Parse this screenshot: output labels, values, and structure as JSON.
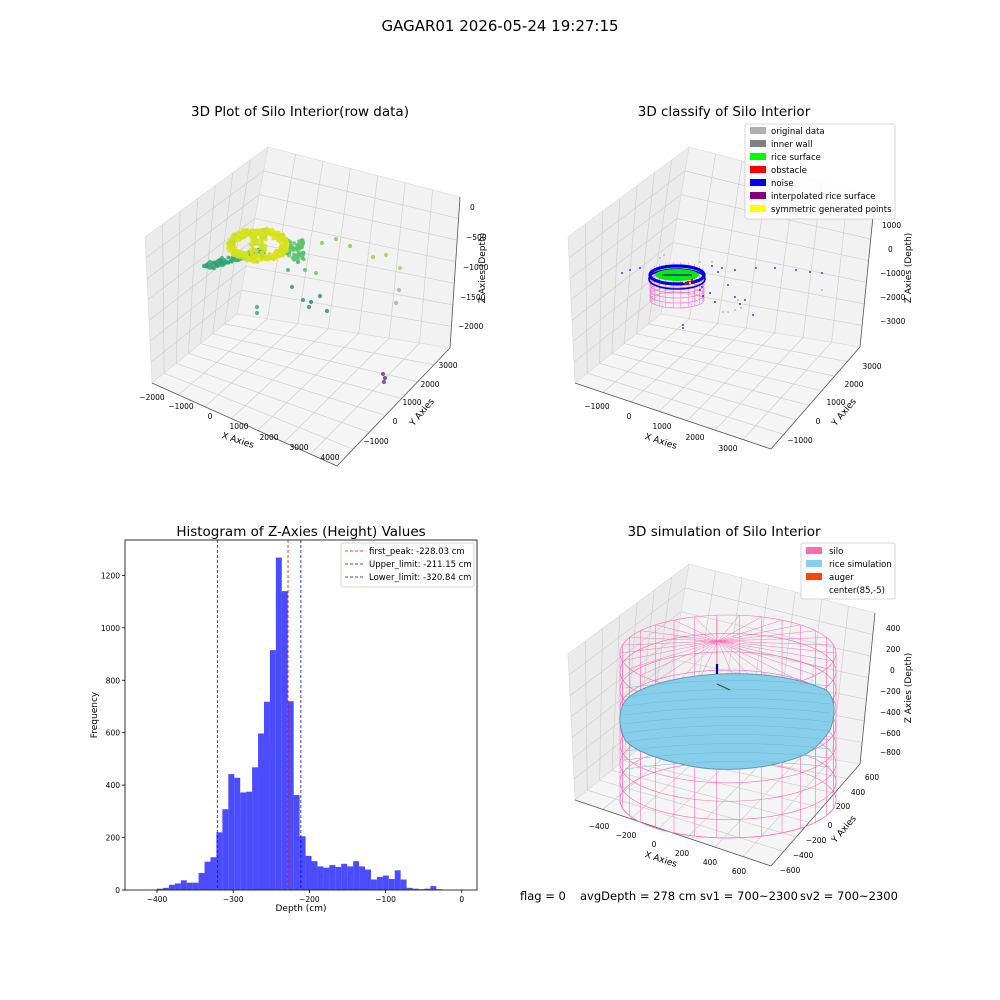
{
  "figure": {
    "suptitle": "GAGAR01 2026-05-24 19:27:15",
    "status": {
      "flag": "flag = 0",
      "avg_depth": "avgDepth = 278 cm",
      "sv1": "sv1 = 700~2300",
      "sv2": "sv2 = 700~2300"
    }
  },
  "chart_data": [
    {
      "type": "scatter",
      "projection": "3d",
      "title": "3D Plot of Silo Interior(row data)",
      "xlabel": "X Axies",
      "ylabel": "Y Axies",
      "zlabel": "Z Axies (Depth)",
      "x_ticks": [
        "−2000",
        "−1000",
        "0",
        "1000",
        "2000",
        "3000",
        "4000"
      ],
      "y_ticks": [
        "−1000",
        "0",
        "1000",
        "2000",
        "3000"
      ],
      "z_ticks": [
        "0",
        "−500",
        "−1000",
        "−1500",
        "−2000"
      ],
      "colormap": "viridis",
      "grid": true,
      "points_description": "dense ring of yellow-green points near z≈-300 with scattered teal/green outliers and a small purple cluster"
    },
    {
      "type": "scatter",
      "projection": "3d",
      "title": "3D classify of Silo Interior",
      "xlabel": "X Axies",
      "ylabel": "Y Axies",
      "zlabel": "Z Axies (Depth)",
      "x_ticks": [
        "−1000",
        "0",
        "1000",
        "2000",
        "3000"
      ],
      "y_ticks": [
        "−1000",
        "0",
        "1000",
        "2000",
        "3000"
      ],
      "z_ticks": [
        "1000",
        "0",
        "−1000",
        "−2000",
        "−3000"
      ],
      "grid": true,
      "legend_position": "top-right",
      "legend": [
        {
          "label": "original data",
          "color": "#b0b0b0"
        },
        {
          "label": "inner wall",
          "color": "#808080"
        },
        {
          "label": "rice surface",
          "color": "#00ff00"
        },
        {
          "label": "obstacle",
          "color": "#ff0000"
        },
        {
          "label": "noise",
          "color": "#0000ff"
        },
        {
          "label": "interpolated rice surface",
          "color": "#800080"
        },
        {
          "label": "symmetric generated points",
          "color": "#ffff00"
        }
      ]
    },
    {
      "type": "bar",
      "subtype": "histogram",
      "title": "Histogram of Z-Axies (Height) Values",
      "xlabel": "Depth (cm)",
      "ylabel": "Frequency",
      "xlim": [
        -442,
        20
      ],
      "ylim": [
        0,
        1335
      ],
      "x_ticks": [
        -400,
        -300,
        -200,
        -100,
        0
      ],
      "y_ticks": [
        0,
        200,
        400,
        600,
        800,
        1000,
        1200
      ],
      "bar_color": "#0000ff",
      "bin_width": 7.8,
      "bins": [
        {
          "x": -400.0,
          "count": 5
        },
        {
          "x": -392.2,
          "count": 8
        },
        {
          "x": -384.4,
          "count": 20
        },
        {
          "x": -376.6,
          "count": 25
        },
        {
          "x": -368.8,
          "count": 37
        },
        {
          "x": -361.0,
          "count": 28
        },
        {
          "x": -353.2,
          "count": 28
        },
        {
          "x": -345.4,
          "count": 65
        },
        {
          "x": -337.6,
          "count": 108
        },
        {
          "x": -329.8,
          "count": 125
        },
        {
          "x": -322.0,
          "count": 220
        },
        {
          "x": -314.2,
          "count": 308
        },
        {
          "x": -306.4,
          "count": 442
        },
        {
          "x": -298.6,
          "count": 428
        },
        {
          "x": -290.8,
          "count": 372
        },
        {
          "x": -283.0,
          "count": 375
        },
        {
          "x": -275.2,
          "count": 468
        },
        {
          "x": -267.4,
          "count": 597
        },
        {
          "x": -259.6,
          "count": 718
        },
        {
          "x": -251.8,
          "count": 915
        },
        {
          "x": -244.0,
          "count": 1268
        },
        {
          "x": -236.2,
          "count": 1140
        },
        {
          "x": -228.4,
          "count": 720
        },
        {
          "x": -220.6,
          "count": 362
        },
        {
          "x": -212.8,
          "count": 205
        },
        {
          "x": -205.0,
          "count": 130
        },
        {
          "x": -197.2,
          "count": 110
        },
        {
          "x": -189.4,
          "count": 90
        },
        {
          "x": -181.6,
          "count": 85
        },
        {
          "x": -173.8,
          "count": 95
        },
        {
          "x": -166.0,
          "count": 88
        },
        {
          "x": -158.2,
          "count": 100
        },
        {
          "x": -150.4,
          "count": 90
        },
        {
          "x": -142.6,
          "count": 110
        },
        {
          "x": -134.8,
          "count": 90
        },
        {
          "x": -127.0,
          "count": 78
        },
        {
          "x": -119.2,
          "count": 40
        },
        {
          "x": -111.4,
          "count": 50
        },
        {
          "x": -103.6,
          "count": 55
        },
        {
          "x": -95.8,
          "count": 42
        },
        {
          "x": -88.0,
          "count": 75
        },
        {
          "x": -80.2,
          "count": 40
        },
        {
          "x": -72.4,
          "count": 8
        },
        {
          "x": -64.6,
          "count": 5
        },
        {
          "x": -56.8,
          "count": 3
        },
        {
          "x": -49.0,
          "count": 5
        },
        {
          "x": -41.2,
          "count": 15
        },
        {
          "x": -33.4,
          "count": 3
        }
      ],
      "vlines": [
        {
          "label": "first_peak: -228.03 cm",
          "x": -228.03,
          "color": "#ff0000"
        },
        {
          "label": "Upper_limit: -211.15 cm",
          "x": -211.15,
          "color": "#0000ff"
        },
        {
          "label": "Lower_limit: -320.84 cm",
          "x": -320.84,
          "color": "#0000ff"
        }
      ],
      "legend_position": "top-right"
    },
    {
      "type": "surface",
      "projection": "3d",
      "title": "3D simulation of Silo Interior",
      "xlabel": "X Axies",
      "ylabel": "Y Axies",
      "zlabel": "Z Axies (Depth)",
      "x_ticks": [
        "−400",
        "−200",
        "0",
        "200",
        "400",
        "600"
      ],
      "y_ticks": [
        "−600",
        "−400",
        "−200",
        "0",
        "200",
        "400",
        "600"
      ],
      "z_ticks": [
        "400",
        "200",
        "0",
        "−200",
        "−400",
        "−600",
        "−800"
      ],
      "grid": true,
      "legend_position": "top-right",
      "legend": [
        {
          "label": "silo",
          "color": "#ff69b4"
        },
        {
          "label": "rice simulation",
          "color": "#87ceeb"
        },
        {
          "label": "auger",
          "color": "#ff4500"
        },
        {
          "label": "center(85,-5)",
          "color": "#ffffff"
        }
      ]
    }
  ]
}
